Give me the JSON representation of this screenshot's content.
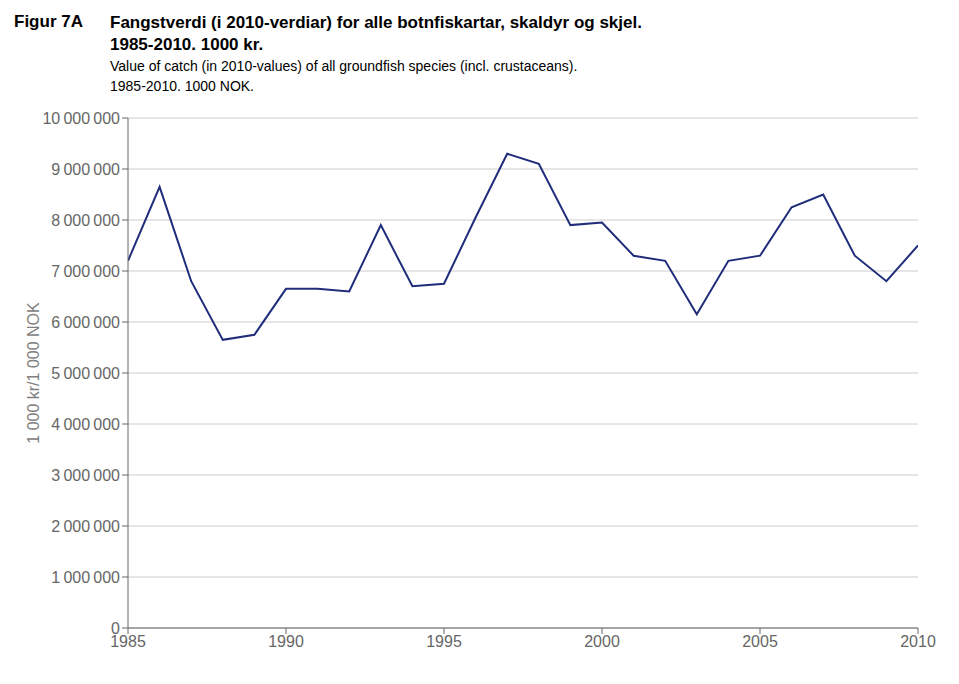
{
  "chart_data": {
    "type": "line",
    "title": "Figur 7A",
    "subtitle": [
      "Fangstverdi (i 2010-verdiar) for alle botnfiskartar, skaldyr og skjel.",
      "1985-2010. 1000 kr.",
      "Value of catch (in 2010-values) of all groundfish species (incl. crustaceans).",
      "1985-2010. 1000 NOK."
    ],
    "ylabel": "1 000 kr/1 000 NOK",
    "x": [
      1985,
      1986,
      1987,
      1988,
      1989,
      1990,
      1991,
      1992,
      1993,
      1994,
      1995,
      1996,
      1997,
      1998,
      1999,
      2000,
      2001,
      2002,
      2003,
      2004,
      2005,
      2006,
      2007,
      2008,
      2009,
      2010
    ],
    "values": [
      7200000,
      8650000,
      6800000,
      5650000,
      5750000,
      6650000,
      6650000,
      6600000,
      7900000,
      6700000,
      6750000,
      8050000,
      9300000,
      9100000,
      7900000,
      7950000,
      7300000,
      7200000,
      6150000,
      7200000,
      7300000,
      8250000,
      8500000,
      7300000,
      6800000,
      7500000
    ],
    "color": "#1F2D7B",
    "xlim": [
      1985,
      2010
    ],
    "xticks": [
      1985,
      1990,
      1995,
      2000,
      2005,
      2010
    ],
    "ylim": [
      0,
      10000000
    ],
    "yticks": [
      0,
      {
        "value": 1000000,
        "label": "1 000 000"
      },
      {
        "value": 2000000,
        "label": "2 000 000"
      },
      {
        "value": 3000000,
        "label": "3 000 000"
      },
      {
        "value": 4000000,
        "label": "4 000 000"
      },
      {
        "value": 5000000,
        "label": "5 000 000"
      },
      {
        "value": 6000000,
        "label": "6 000 000"
      },
      {
        "value": 7000000,
        "label": "7 000 000"
      },
      {
        "value": 8000000,
        "label": "8 000 000"
      },
      {
        "value": 9000000,
        "label": "9 000 000"
      },
      {
        "value": 10000000,
        "label": "10 000 000"
      }
    ],
    "grid": true
  }
}
